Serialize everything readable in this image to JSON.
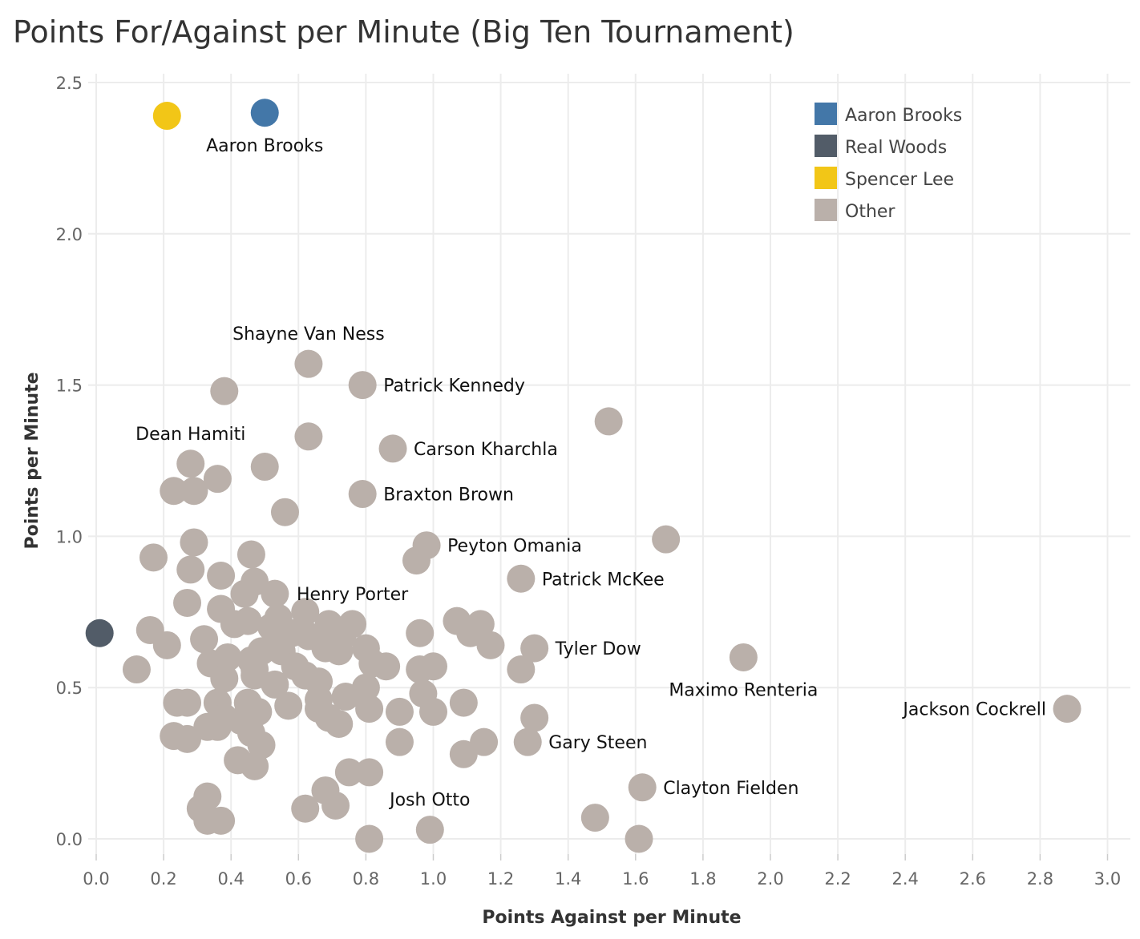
{
  "chart_data": {
    "type": "scatter",
    "title": "Points For/Against per Minute (Big Ten Tournament)",
    "xlabel": "Points Against per Minute",
    "ylabel": "Points per Minute",
    "xlim": [
      -0.05,
      3.05
    ],
    "ylim": [
      -0.05,
      2.58
    ],
    "xticks": [
      "0.0",
      "0.2",
      "0.4",
      "0.6",
      "0.8",
      "1.0",
      "1.2",
      "1.4",
      "1.6",
      "1.8",
      "2.0",
      "2.2",
      "2.4",
      "2.6",
      "2.8",
      "3.0"
    ],
    "yticks": [
      "0.0",
      "0.5",
      "1.0",
      "1.5",
      "2.0",
      "2.5"
    ],
    "grid": true,
    "legend": {
      "position": "top-right",
      "entries": [
        {
          "name": "Aaron Brooks",
          "color": "#4377a8"
        },
        {
          "name": "Real Woods",
          "color": "#525c68"
        },
        {
          "name": "Spencer Lee",
          "color": "#f2c617"
        },
        {
          "name": "Other",
          "color": "#bab0aa"
        }
      ]
    },
    "series": [
      {
        "name": "Aaron Brooks",
        "color": "#4377a8",
        "points": [
          [
            0.5,
            2.4
          ]
        ]
      },
      {
        "name": "Real Woods",
        "color": "#525c68",
        "points": [
          [
            0.01,
            0.68
          ]
        ]
      },
      {
        "name": "Spencer Lee",
        "color": "#f2c617",
        "points": [
          [
            0.21,
            2.39
          ]
        ]
      },
      {
        "name": "Other",
        "color": "#bab0aa",
        "points": [
          [
            0.63,
            1.57
          ],
          [
            0.79,
            1.5
          ],
          [
            0.38,
            1.48
          ],
          [
            1.52,
            1.38
          ],
          [
            0.63,
            1.33
          ],
          [
            0.88,
            1.29
          ],
          [
            0.28,
            1.24
          ],
          [
            0.5,
            1.23
          ],
          [
            0.36,
            1.19
          ],
          [
            0.23,
            1.15
          ],
          [
            0.29,
            1.15
          ],
          [
            0.79,
            1.14
          ],
          [
            0.56,
            1.08
          ],
          [
            1.69,
            0.99
          ],
          [
            0.29,
            0.98
          ],
          [
            0.98,
            0.97
          ],
          [
            0.95,
            0.92
          ],
          [
            0.17,
            0.93
          ],
          [
            0.28,
            0.89
          ],
          [
            0.46,
            0.94
          ],
          [
            0.37,
            0.87
          ],
          [
            0.47,
            0.85
          ],
          [
            1.26,
            0.86
          ],
          [
            0.53,
            0.81
          ],
          [
            0.44,
            0.81
          ],
          [
            0.27,
            0.78
          ],
          [
            0.37,
            0.76
          ],
          [
            0.45,
            0.72
          ],
          [
            0.62,
            0.75
          ],
          [
            0.41,
            0.71
          ],
          [
            0.54,
            0.73
          ],
          [
            0.69,
            0.71
          ],
          [
            0.76,
            0.71
          ],
          [
            1.07,
            0.72
          ],
          [
            1.14,
            0.71
          ],
          [
            0.16,
            0.69
          ],
          [
            0.52,
            0.7
          ],
          [
            0.58,
            0.68
          ],
          [
            0.96,
            0.68
          ],
          [
            1.11,
            0.68
          ],
          [
            0.63,
            0.67
          ],
          [
            0.73,
            0.67
          ],
          [
            0.32,
            0.66
          ],
          [
            0.55,
            0.65
          ],
          [
            0.21,
            0.64
          ],
          [
            1.17,
            0.64
          ],
          [
            0.68,
            0.63
          ],
          [
            0.72,
            0.62
          ],
          [
            0.8,
            0.63
          ],
          [
            1.3,
            0.63
          ],
          [
            0.39,
            0.6
          ],
          [
            0.46,
            0.59
          ],
          [
            0.49,
            0.62
          ],
          [
            0.55,
            0.62
          ],
          [
            0.34,
            0.58
          ],
          [
            0.47,
            0.56
          ],
          [
            0.59,
            0.57
          ],
          [
            0.82,
            0.58
          ],
          [
            0.86,
            0.57
          ],
          [
            0.96,
            0.56
          ],
          [
            1.0,
            0.57
          ],
          [
            1.26,
            0.56
          ],
          [
            0.12,
            0.56
          ],
          [
            0.38,
            0.53
          ],
          [
            0.47,
            0.54
          ],
          [
            0.62,
            0.54
          ],
          [
            0.53,
            0.51
          ],
          [
            0.66,
            0.52
          ],
          [
            0.8,
            0.5
          ],
          [
            0.36,
            0.45
          ],
          [
            0.45,
            0.45
          ],
          [
            0.27,
            0.45
          ],
          [
            0.24,
            0.45
          ],
          [
            0.57,
            0.44
          ],
          [
            0.66,
            0.46
          ],
          [
            0.74,
            0.47
          ],
          [
            0.97,
            0.48
          ],
          [
            1.09,
            0.45
          ],
          [
            0.66,
            0.43
          ],
          [
            0.81,
            0.43
          ],
          [
            0.9,
            0.42
          ],
          [
            1.0,
            0.42
          ],
          [
            0.48,
            0.42
          ],
          [
            0.38,
            0.4
          ],
          [
            0.43,
            0.39
          ],
          [
            0.69,
            0.4
          ],
          [
            0.72,
            0.38
          ],
          [
            1.3,
            0.4
          ],
          [
            0.33,
            0.37
          ],
          [
            0.36,
            0.37
          ],
          [
            0.46,
            0.35
          ],
          [
            0.23,
            0.34
          ],
          [
            0.27,
            0.33
          ],
          [
            0.49,
            0.31
          ],
          [
            0.9,
            0.32
          ],
          [
            1.15,
            0.32
          ],
          [
            1.28,
            0.32
          ],
          [
            0.42,
            0.26
          ],
          [
            0.47,
            0.24
          ],
          [
            0.75,
            0.22
          ],
          [
            0.81,
            0.22
          ],
          [
            1.09,
            0.28
          ],
          [
            1.62,
            0.17
          ],
          [
            0.33,
            0.14
          ],
          [
            0.68,
            0.16
          ],
          [
            0.31,
            0.1
          ],
          [
            0.62,
            0.1
          ],
          [
            0.71,
            0.11
          ],
          [
            0.33,
            0.06
          ],
          [
            0.37,
            0.06
          ],
          [
            1.48,
            0.07
          ],
          [
            0.99,
            0.03
          ],
          [
            0.81,
            0.0
          ],
          [
            1.61,
            0.0
          ],
          [
            1.92,
            0.6
          ],
          [
            2.88,
            0.43
          ]
        ]
      }
    ],
    "annotations": [
      {
        "text": "Aaron Brooks",
        "x": 0.5,
        "y": 2.4,
        "placement": "below"
      },
      {
        "text": "Shayne Van Ness",
        "x": 0.63,
        "y": 1.57,
        "placement": "above"
      },
      {
        "text": "Patrick Kennedy",
        "x": 0.79,
        "y": 1.5,
        "placement": "right"
      },
      {
        "text": "Dean Hamiti",
        "x": 0.28,
        "y": 1.24,
        "placement": "above"
      },
      {
        "text": "Carson Kharchla",
        "x": 0.88,
        "y": 1.29,
        "placement": "right"
      },
      {
        "text": "Braxton Brown",
        "x": 0.79,
        "y": 1.14,
        "placement": "right"
      },
      {
        "text": "Peyton Omania",
        "x": 0.98,
        "y": 0.97,
        "placement": "right"
      },
      {
        "text": "Patrick McKee",
        "x": 1.26,
        "y": 0.86,
        "placement": "right"
      },
      {
        "text": "Henry Porter",
        "x": 0.76,
        "y": 0.71,
        "placement": "above"
      },
      {
        "text": "Tyler Dow",
        "x": 1.3,
        "y": 0.63,
        "placement": "right"
      },
      {
        "text": "Maximo Renteria",
        "x": 1.92,
        "y": 0.6,
        "placement": "below"
      },
      {
        "text": "Jackson Cockrell",
        "x": 2.88,
        "y": 0.43,
        "placement": "left"
      },
      {
        "text": "Gary Steen",
        "x": 1.28,
        "y": 0.32,
        "placement": "right"
      },
      {
        "text": "Clayton Fielden",
        "x": 1.62,
        "y": 0.17,
        "placement": "right"
      },
      {
        "text": "Josh Otto",
        "x": 0.99,
        "y": 0.03,
        "placement": "above"
      }
    ]
  }
}
